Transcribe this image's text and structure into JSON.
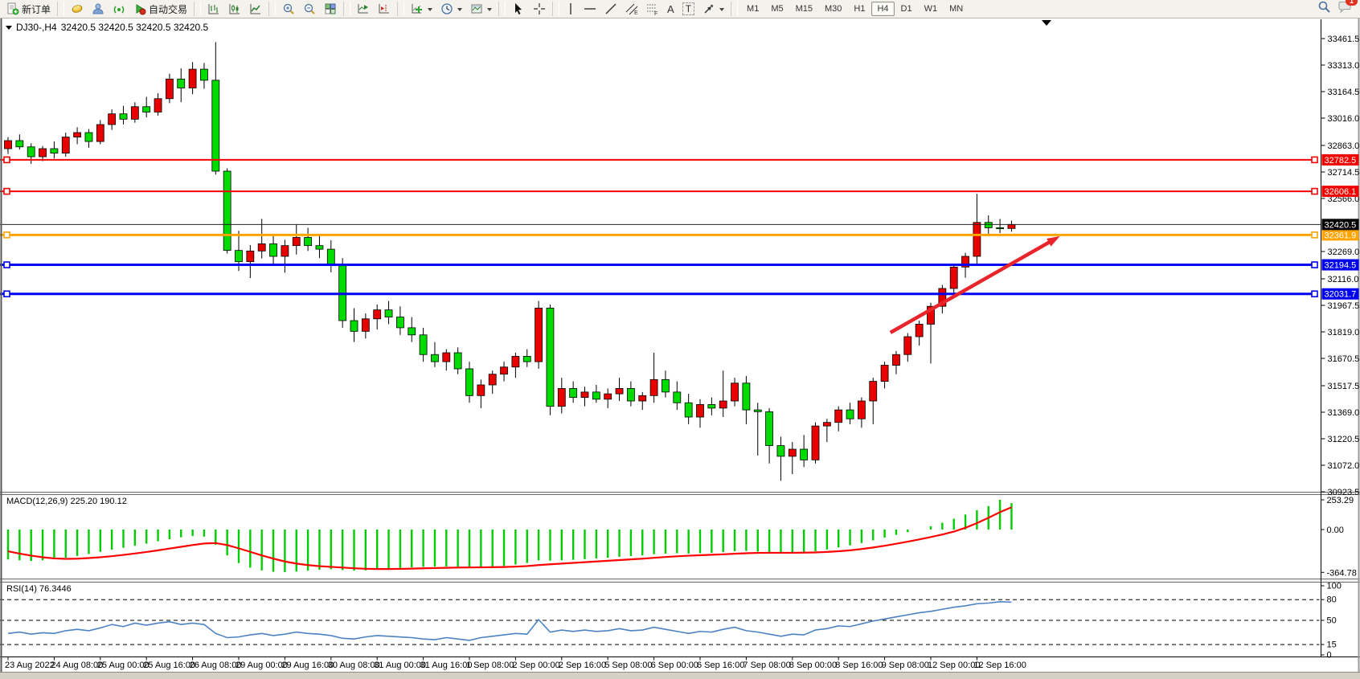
{
  "toolbar": {
    "new_order_label": "新订单",
    "autotrading_label": "自动交易",
    "timeframes": [
      "M1",
      "M5",
      "M15",
      "M30",
      "H1",
      "H4",
      "D1",
      "W1",
      "MN"
    ],
    "active_timeframe": "H4",
    "notification_count": "1",
    "glyphs": {
      "a": "A",
      "t": "T",
      "e": "E",
      "f": "F"
    }
  },
  "chart": {
    "symbol_period": "DJ30-,H4",
    "ohlc_line": "32420.5 32420.5 32420.5 32420.5"
  },
  "chart_data": {
    "type": "candlestick",
    "symbol": "DJ30-",
    "period": "H4",
    "current": {
      "open": "32420.5",
      "high": "32420.5",
      "low": "32420.5",
      "close": "32420.5"
    },
    "colors": {
      "bull": "#E80000",
      "bear": "#00DC00",
      "wick": "#000000"
    },
    "x_labels": [
      "23 Aug 2022",
      "24 Aug 08:00",
      "25 Aug 00:00",
      "25 Aug 16:00",
      "26 Aug 08:00",
      "29 Aug 00:00",
      "29 Aug 16:00",
      "30 Aug 08:00",
      "31 Aug 00:00",
      "31 Aug 16:00",
      "1 Sep 08:00",
      "2 Sep 00:00",
      "2 Sep 16:00",
      "5 Sep 08:00",
      "6 Sep 00:00",
      "6 Sep 16:00",
      "7 Sep 08:00",
      "8 Sep 00:00",
      "8 Sep 16:00",
      "9 Sep 08:00",
      "12 Sep 00:00",
      "12 Sep 16:00"
    ],
    "candles_per_label": 4,
    "y_ticks": [
      "33461.5",
      "33313.0",
      "33164.5",
      "33016.0",
      "32863.0",
      "32714.5",
      "32566.0",
      "32269.0",
      "32116.0",
      "31967.5",
      "31819.0",
      "31670.5",
      "31517.5",
      "31369.0",
      "31220.5",
      "31072.0",
      "30923.5"
    ],
    "candles": [
      [
        32845,
        32910,
        32815,
        32890
      ],
      [
        32890,
        32925,
        32840,
        32855
      ],
      [
        32855,
        32875,
        32760,
        32800
      ],
      [
        32800,
        32860,
        32775,
        32845
      ],
      [
        32845,
        32885,
        32790,
        32820
      ],
      [
        32820,
        32935,
        32800,
        32910
      ],
      [
        32910,
        32965,
        32870,
        32935
      ],
      [
        32935,
        32955,
        32850,
        32885
      ],
      [
        32885,
        33005,
        32870,
        32980
      ],
      [
        32980,
        33065,
        32950,
        33040
      ],
      [
        33040,
        33085,
        32980,
        33010
      ],
      [
        33010,
        33105,
        32990,
        33080
      ],
      [
        33080,
        33135,
        33020,
        33050
      ],
      [
        33050,
        33155,
        33030,
        33125
      ],
      [
        33125,
        33265,
        33100,
        33235
      ],
      [
        33235,
        33295,
        33105,
        33185
      ],
      [
        33185,
        33330,
        33150,
        33290
      ],
      [
        33290,
        33325,
        33180,
        33228
      ],
      [
        33228,
        33442,
        32700,
        32719
      ],
      [
        32719,
        32735,
        32258,
        32275
      ],
      [
        32275,
        32385,
        32160,
        32212
      ],
      [
        32212,
        32305,
        32120,
        32272
      ],
      [
        32272,
        32452,
        32230,
        32312
      ],
      [
        32312,
        32362,
        32200,
        32242
      ],
      [
        32242,
        32335,
        32150,
        32302
      ],
      [
        32302,
        32422,
        32252,
        32348
      ],
      [
        32348,
        32402,
        32272,
        32302
      ],
      [
        32302,
        32362,
        32232,
        32282
      ],
      [
        32282,
        32332,
        32152,
        32192
      ],
      [
        32192,
        32232,
        31842,
        31882
      ],
      [
        31882,
        31952,
        31762,
        31822
      ],
      [
        31822,
        31922,
        31782,
        31892
      ],
      [
        31892,
        31972,
        31832,
        31942
      ],
      [
        31942,
        31992,
        31862,
        31902
      ],
      [
        31902,
        31962,
        31802,
        31842
      ],
      [
        31842,
        31902,
        31762,
        31802
      ],
      [
        31802,
        31842,
        31652,
        31692
      ],
      [
        31692,
        31762,
        31622,
        31652
      ],
      [
        31652,
        31722,
        31602,
        31702
      ],
      [
        31702,
        31732,
        31582,
        31612
      ],
      [
        31612,
        31652,
        31422,
        31462
      ],
      [
        31462,
        31552,
        31392,
        31522
      ],
      [
        31522,
        31602,
        31472,
        31582
      ],
      [
        31582,
        31652,
        31542,
        31622
      ],
      [
        31622,
        31702,
        31562,
        31682
      ],
      [
        31682,
        31722,
        31622,
        31652
      ],
      [
        31652,
        31992,
        31612,
        31952
      ],
      [
        31952,
        31972,
        31352,
        31402
      ],
      [
        31402,
        31562,
        31362,
        31502
      ],
      [
        31502,
        31542,
        31422,
        31452
      ],
      [
        31452,
        31512,
        31402,
        31482
      ],
      [
        31482,
        31522,
        31422,
        31442
      ],
      [
        31442,
        31502,
        31392,
        31472
      ],
      [
        31472,
        31562,
        31432,
        31502
      ],
      [
        31502,
        31542,
        31402,
        31432
      ],
      [
        31432,
        31482,
        31382,
        31462
      ],
      [
        31462,
        31702,
        31422,
        31552
      ],
      [
        31552,
        31602,
        31452,
        31482
      ],
      [
        31482,
        31542,
        31382,
        31422
      ],
      [
        31422,
        31472,
        31302,
        31342
      ],
      [
        31342,
        31442,
        31282,
        31412
      ],
      [
        31412,
        31452,
        31352,
        31392
      ],
      [
        31392,
        31602,
        31342,
        31432
      ],
      [
        31432,
        31562,
        31402,
        31532
      ],
      [
        31532,
        31572,
        31302,
        31382
      ],
      [
        31382,
        31422,
        31126,
        31372
      ],
      [
        31372,
        31392,
        31082,
        31182
      ],
      [
        31182,
        31232,
        30985,
        31122
      ],
      [
        31122,
        31202,
        31022,
        31162
      ],
      [
        31162,
        31242,
        31062,
        31102
      ],
      [
        31102,
        31312,
        31082,
        31292
      ],
      [
        31292,
        31332,
        31202,
        31312
      ],
      [
        31312,
        31402,
        31262,
        31382
      ],
      [
        31382,
        31422,
        31302,
        31332
      ],
      [
        31332,
        31452,
        31282,
        31432
      ],
      [
        31432,
        31562,
        31302,
        31542
      ],
      [
        31542,
        31652,
        31502,
        31632
      ],
      [
        31632,
        31712,
        31582,
        31692
      ],
      [
        31692,
        31812,
        31652,
        31792
      ],
      [
        31792,
        31882,
        31742,
        31862
      ],
      [
        31862,
        31982,
        31642,
        31962
      ],
      [
        31962,
        32082,
        31922,
        32062
      ],
      [
        32062,
        32202,
        32022,
        32182
      ],
      [
        32182,
        32262,
        32122,
        32242
      ],
      [
        32242,
        32592,
        32202,
        32432
      ],
      [
        32432,
        32472,
        32362,
        32402
      ],
      [
        32402,
        32452,
        32372,
        32398
      ],
      [
        32398,
        32442,
        32380,
        32420.5
      ]
    ],
    "price_lines": [
      {
        "value": 32782.5,
        "color": "#F40000",
        "width": 2,
        "name": "resistance-line-1"
      },
      {
        "value": 32606.1,
        "color": "#F40000",
        "width": 2,
        "name": "resistance-line-2"
      },
      {
        "value": 32361.9,
        "color": "#FFA400",
        "width": 3,
        "name": "support-line-orange"
      },
      {
        "value": 32194.5,
        "color": "#0000F0",
        "width": 3,
        "name": "support-line-blue-1"
      },
      {
        "value": 32031.7,
        "color": "#0000F0",
        "width": 3,
        "name": "support-line-blue-2"
      }
    ],
    "current_price": {
      "value": 32420.5,
      "color": "#000000"
    },
    "arrow": {
      "from_index": 76.5,
      "from_price": 31815,
      "to_index": 91.2,
      "to_price": 32355,
      "color": "#E8252B"
    },
    "macd": {
      "label": "MACD(12,26,9) 225.20 190.12",
      "y_ticks": [
        "253.29",
        "0.00",
        "-364.78"
      ],
      "bar_color": "#00CC00",
      "signal_color": "#FF0000",
      "values": [
        -255,
        -262,
        -268,
        -262,
        -252,
        -240,
        -225,
        -208,
        -190,
        -172,
        -155,
        -138,
        -120,
        -100,
        -82,
        -66,
        -55,
        -60,
        -130,
        -220,
        -285,
        -325,
        -348,
        -360,
        -363,
        -358,
        -350,
        -342,
        -338,
        -345,
        -350,
        -348,
        -342,
        -335,
        -328,
        -322,
        -318,
        -316,
        -315,
        -316,
        -320,
        -322,
        -318,
        -310,
        -298,
        -285,
        -262,
        -265,
        -262,
        -258,
        -252,
        -246,
        -240,
        -232,
        -226,
        -220,
        -210,
        -205,
        -202,
        -205,
        -202,
        -198,
        -192,
        -184,
        -182,
        -188,
        -196,
        -202,
        -200,
        -195,
        -185,
        -170,
        -152,
        -135,
        -115,
        -92,
        -68,
        -45,
        -22,
        0,
        28,
        58,
        92,
        128,
        165,
        200,
        253.3,
        225.2
      ],
      "signal": [
        -185,
        -205,
        -222,
        -236,
        -246,
        -250,
        -248,
        -243,
        -236,
        -227,
        -216,
        -204,
        -191,
        -177,
        -162,
        -147,
        -132,
        -119,
        -115,
        -132,
        -160,
        -190,
        -220,
        -248,
        -272,
        -290,
        -303,
        -312,
        -318,
        -324,
        -330,
        -334,
        -336,
        -336,
        -335,
        -333,
        -330,
        -328,
        -326,
        -324,
        -323,
        -322,
        -321,
        -319,
        -316,
        -311,
        -303,
        -296,
        -290,
        -284,
        -278,
        -272,
        -266,
        -260,
        -254,
        -248,
        -241,
        -234,
        -228,
        -223,
        -219,
        -215,
        -211,
        -206,
        -202,
        -199,
        -198,
        -198,
        -198,
        -197,
        -195,
        -191,
        -185,
        -177,
        -166,
        -153,
        -138,
        -121,
        -103,
        -84,
        -64,
        -42,
        -18,
        15,
        55,
        100,
        148,
        190.1
      ]
    },
    "rsi": {
      "label": "RSI(14) 76.3446",
      "levels": [
        80,
        50,
        15
      ],
      "y_ticks": [
        "100",
        "80",
        "50",
        "15",
        "0"
      ],
      "line_color": "#4C82C4",
      "values": [
        31,
        33,
        30,
        32,
        31,
        35,
        37,
        35,
        39,
        44,
        41,
        46,
        43,
        46,
        48,
        44,
        46,
        44,
        31,
        25,
        26,
        29,
        31,
        28,
        30,
        33,
        31,
        30,
        28,
        24,
        23,
        26,
        28,
        27,
        26,
        25,
        23,
        22,
        25,
        23,
        21,
        25,
        27,
        29,
        31,
        30,
        51,
        33,
        36,
        34,
        36,
        34,
        35,
        38,
        35,
        36,
        40,
        37,
        34,
        31,
        34,
        33,
        37,
        40,
        35,
        33,
        30,
        27,
        30,
        29,
        36,
        38,
        42,
        41,
        45,
        49,
        52,
        55,
        58,
        61,
        63,
        66,
        69,
        71,
        74,
        75,
        77,
        76.3
      ]
    }
  }
}
